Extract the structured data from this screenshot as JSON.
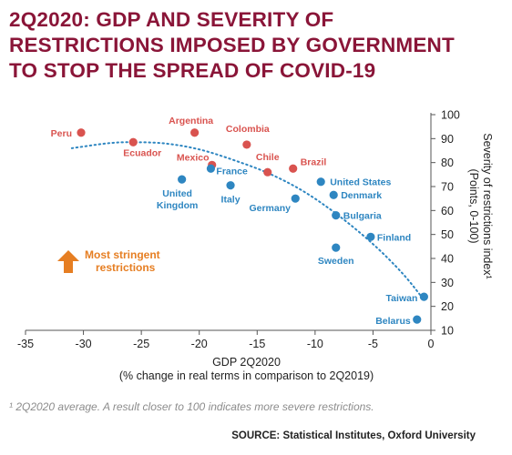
{
  "title_lines": [
    "2Q2020: GDP AND SEVERITY OF",
    "RESTRICTIONS IMPOSED BY GOVERNMENT",
    "TO STOP THE SPREAD OF COVID-19"
  ],
  "footnote": "¹ 2Q2020 average. A result closer to 100 indicates more severe restrictions.",
  "source": "SOURCE: Statistical Institutes, Oxford University",
  "colors": {
    "title": "#8a1538",
    "latin_america": "#d9534f",
    "other": "#2e86c1",
    "arrow": "#e67e22",
    "trend": "#2e86c1"
  },
  "chart_data": {
    "type": "scatter",
    "title": "2Q2020: GDP AND SEVERITY OF RESTRICTIONS IMPOSED BY GOVERNMENT TO STOP THE SPREAD OF COVID-19",
    "xlabel": "GDP 2Q2020",
    "xlabel_sub": "(% change in real terms in comparison to 2Q2019)",
    "ylabel": "Severity of restrictions index¹",
    "ylabel_sub": "(Points, 0-100)",
    "xlim": [
      -35,
      0
    ],
    "ylim": [
      10,
      100
    ],
    "xticks": [
      -35,
      -30,
      -25,
      -20,
      -15,
      -10,
      -5,
      0
    ],
    "yticks": [
      10,
      20,
      30,
      40,
      50,
      60,
      70,
      80,
      90,
      100
    ],
    "grid": false,
    "annotation": "Most stringent restrictions",
    "annotation_lines": [
      "Most stringent",
      "restrictions"
    ],
    "trendline": {
      "style": "dotted",
      "x": [
        -31,
        -28,
        -26,
        -23,
        -20,
        -17,
        -14,
        -11,
        -8,
        -5,
        -2.5,
        -0.8
      ],
      "y": [
        86,
        88,
        88.5,
        88,
        85.5,
        81,
        75.5,
        68,
        58,
        46,
        34,
        24
      ]
    },
    "series": [
      {
        "color_key": "latin_america",
        "points": [
          {
            "label": "Peru",
            "x": -30.2,
            "y": 92.5
          },
          {
            "label": "Argentina",
            "x": -20.4,
            "y": 92.5
          },
          {
            "label": "Ecuador",
            "x": -25.7,
            "y": 88.5
          },
          {
            "label": "Colombia",
            "x": -15.9,
            "y": 87.5
          },
          {
            "label": "Mexico",
            "x": -18.9,
            "y": 79
          },
          {
            "label": "Chile",
            "x": -14.1,
            "y": 76
          },
          {
            "label": "Brazil",
            "x": -11.9,
            "y": 77.5
          }
        ]
      },
      {
        "color_key": "other",
        "points": [
          {
            "label": "France",
            "x": -19,
            "y": 77.5
          },
          {
            "label": "United Kingdom",
            "x": -21.5,
            "y": 73
          },
          {
            "label": "Italy",
            "x": -17.3,
            "y": 70.5
          },
          {
            "label": "Germany",
            "x": -11.7,
            "y": 65
          },
          {
            "label": "United States",
            "x": -9.5,
            "y": 72
          },
          {
            "label": "Denmark",
            "x": -8.4,
            "y": 66.5
          },
          {
            "label": "Bulgaria",
            "x": -8.2,
            "y": 58
          },
          {
            "label": "Finland",
            "x": -5.2,
            "y": 49
          },
          {
            "label": "Sweden",
            "x": -8.2,
            "y": 44.5
          },
          {
            "label": "Taiwan",
            "x": -0.6,
            "y": 24
          },
          {
            "label": "Belarus",
            "x": -1.2,
            "y": 14.5
          }
        ]
      }
    ]
  }
}
